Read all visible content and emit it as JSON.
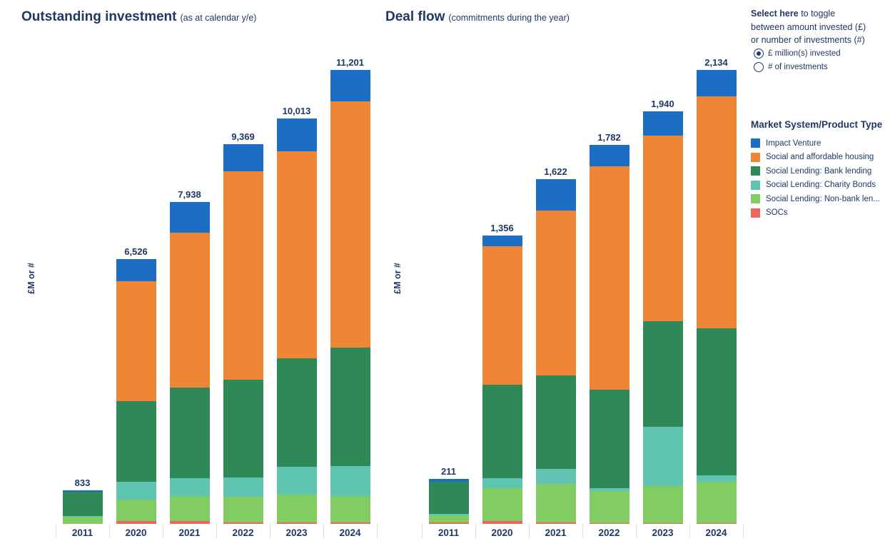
{
  "colors": {
    "text_navy": "#1F3864",
    "impact_venture_blue": "#1B6EC2",
    "housing_orange": "#EF8636",
    "bank_lending_green": "#2E8857",
    "charity_bonds_teal": "#5FC4B0",
    "nonbank_light_green": "#81CC63",
    "socs_red": "#EC655F"
  },
  "toggle": {
    "lead_bold": "Select here",
    "lead_rest": " to toggle",
    "line2": "between amount invested (£)",
    "line3": "or number of investments (#)",
    "options": [
      {
        "label": "£ million(s) invested",
        "selected": true
      },
      {
        "label": "# of investments",
        "selected": false
      }
    ]
  },
  "legend": {
    "title": "Market System/Product Type",
    "items": [
      {
        "label": "Impact Venture",
        "color": "#1B6EC2"
      },
      {
        "label": "Social and affordable housing",
        "color": "#EF8636"
      },
      {
        "label": "Social Lending: Bank lending",
        "color": "#2E8857"
      },
      {
        "label": "Social Lending: Charity Bonds",
        "color": "#5FC4B0"
      },
      {
        "label": "Social Lending: Non-bank len...",
        "color": "#81CC63"
      },
      {
        "label": "SOCs",
        "color": "#EC655F"
      }
    ]
  },
  "chart_data": [
    {
      "type": "bar",
      "stacked": true,
      "title": "Outstanding investment",
      "subtitle": "(as at calendar y/e)",
      "ylabel": "£M or #",
      "xlabel": "",
      "legend_position": "right",
      "grid": false,
      "categories": [
        "2011",
        "2020",
        "2021",
        "2022",
        "2023",
        "2024"
      ],
      "totals": [
        "833",
        "6,526",
        "7,938",
        "9,369",
        "10,013",
        "11,201"
      ],
      "series": [
        {
          "name": "SOCs",
          "color": "#EC655F",
          "values": [
            0,
            70,
            65,
            35,
            30,
            35
          ]
        },
        {
          "name": "Social Lending: Non-bank len...",
          "color": "#81CC63",
          "values": [
            170,
            525,
            630,
            630,
            685,
            650
          ]
        },
        {
          "name": "Social Lending: Charity Bonds",
          "color": "#5FC4B0",
          "values": [
            30,
            440,
            440,
            475,
            700,
            740
          ]
        },
        {
          "name": "Social Lending: Bank lending",
          "color": "#2E8857",
          "values": [
            598,
            2000,
            2230,
            2420,
            2665,
            2925
          ]
        },
        {
          "name": "Social and affordable housing",
          "color": "#EF8636",
          "values": [
            0,
            2945,
            3815,
            5145,
            5108,
            6080
          ]
        },
        {
          "name": "Impact Venture",
          "color": "#1B6EC2",
          "values": [
            35,
            546,
            758,
            664,
            825,
            771
          ]
        }
      ]
    },
    {
      "type": "bar",
      "stacked": true,
      "title": "Deal flow",
      "subtitle": "(commitments during the year)",
      "ylabel": "£M or #",
      "xlabel": "",
      "legend_position": "right",
      "grid": false,
      "categories": [
        "2011",
        "2020",
        "2021",
        "2022",
        "2023",
        "2024"
      ],
      "totals": [
        "211",
        "1,356",
        "1,622",
        "1,782",
        "1,940",
        "2,134"
      ],
      "series": [
        {
          "name": "SOCs",
          "color": "#EC655F",
          "values": [
            8,
            13,
            7,
            3,
            3,
            3
          ]
        },
        {
          "name": "Social Lending: Non-bank len...",
          "color": "#81CC63",
          "values": [
            32,
            155,
            180,
            151,
            174,
            195
          ]
        },
        {
          "name": "Social Lending: Charity Bonds",
          "color": "#5FC4B0",
          "values": [
            6,
            47,
            73,
            13,
            278,
            30
          ]
        },
        {
          "name": "Social Lending: Bank lending",
          "color": "#2E8857",
          "values": [
            152,
            441,
            437,
            463,
            497,
            691
          ]
        },
        {
          "name": "Social and affordable housing",
          "color": "#EF8636",
          "values": [
            0,
            650,
            777,
            1051,
            874,
            1090
          ]
        },
        {
          "name": "Impact Venture",
          "color": "#1B6EC2",
          "values": [
            13,
            50,
            148,
            101,
            114,
            125
          ]
        }
      ]
    }
  ]
}
